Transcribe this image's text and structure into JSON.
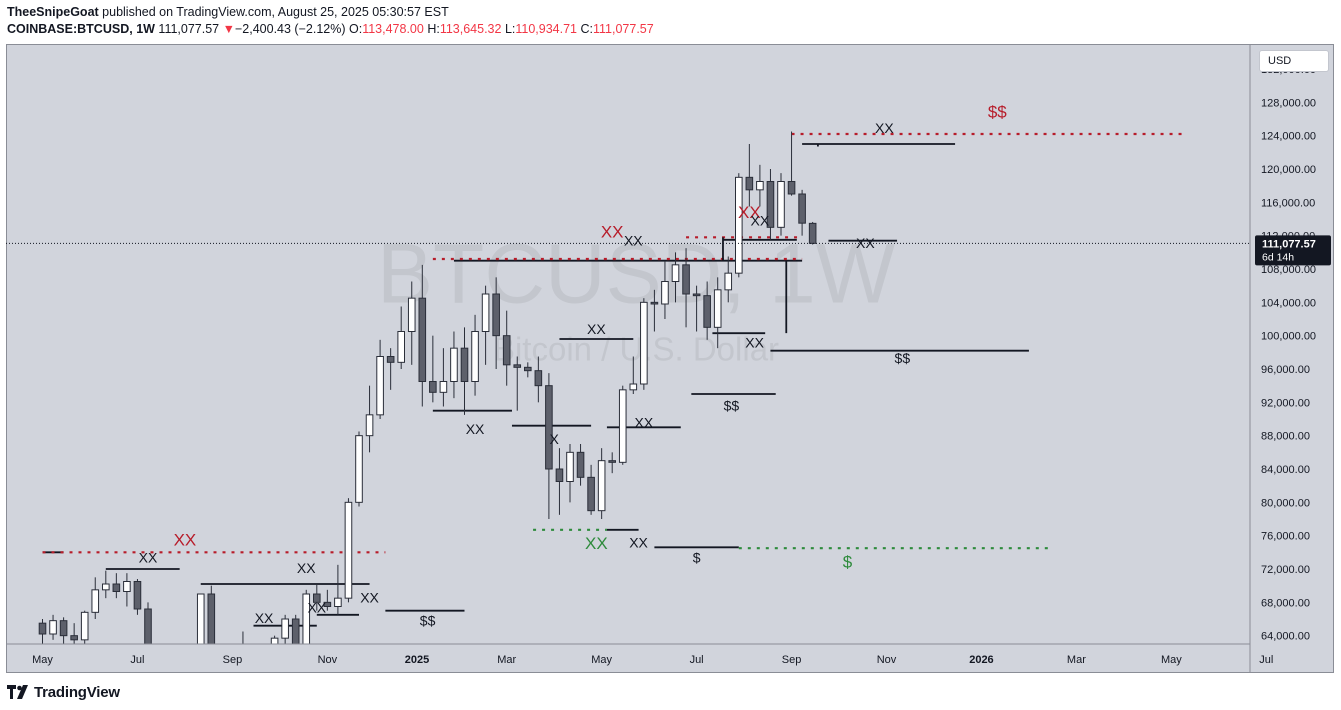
{
  "header": {
    "author": "TheeSnipeGoat",
    "published_text": "published on TradingView.com, August 25, 2025 05:30:57 EST",
    "symbol": "COINBASE:BTCUSD,",
    "interval": "1W",
    "last": "111,077.57",
    "change_arrow": "▼",
    "change": "−2,400.43 (−2.12%)",
    "o_label": "O:",
    "o_value": "113,478.00",
    "h_label": "H:",
    "h_value": "113,645.32",
    "l_label": "L:",
    "l_value": "110,934.71",
    "c_label": "C:",
    "c_value": "111,077.57"
  },
  "currency_button": "USD",
  "price_badge": {
    "price": "111,077.57",
    "countdown": "6d 14h"
  },
  "watermark": {
    "symbol": "BTCUSD, 1W",
    "name": "Bitcoin / U.S. Dollar"
  },
  "footer": {
    "brand": "TradingView",
    "logo": "tradingview-logo-icon"
  },
  "colors": {
    "annotation_red": "#b71c2a",
    "annotation_green": "#2e8b3c",
    "line": "#131722",
    "panel": "#d1d4dc"
  },
  "chart_data": {
    "type": "candlestick",
    "ylim": [
      63000,
      135000
    ],
    "yticks": [
      64000,
      68000,
      72000,
      76000,
      80000,
      84000,
      88000,
      92000,
      96000,
      100000,
      104000,
      108000,
      112000,
      116000,
      120000,
      124000,
      128000,
      132000
    ],
    "ytick_labels": [
      "64,000.00",
      "68,000.00",
      "72,000.00",
      "76,000.00",
      "80,000.00",
      "84,000.00",
      "88,000.00",
      "92,000.00",
      "96,000.00",
      "100,000.00",
      "104,000.00",
      "108,000.00",
      "112,000.00",
      "116,000.00",
      "120,000.00",
      "124,000.00",
      "128,000.00",
      "132,000.00"
    ],
    "xtick_labels": [
      "May",
      "Jul",
      "Sep",
      "Nov",
      "2025",
      "Mar",
      "May",
      "Jul",
      "Sep",
      "Nov",
      "2026",
      "Mar",
      "May",
      "Jul"
    ],
    "xtick_weeks": [
      0,
      9,
      18,
      27,
      35.5,
      44,
      53,
      62,
      71,
      80,
      89,
      98,
      107,
      116
    ],
    "current_price": 111077.57,
    "candles": [
      [
        65500,
        66000,
        63000,
        64200
      ],
      [
        64200,
        66500,
        63500,
        65800
      ],
      [
        65800,
        66200,
        63000,
        64000
      ],
      [
        64000,
        65500,
        62500,
        63500
      ],
      [
        63500,
        67000,
        63000,
        66800
      ],
      [
        66800,
        71000,
        66000,
        69500
      ],
      [
        69500,
        71800,
        68500,
        70200
      ],
      [
        70200,
        71500,
        68500,
        69300
      ],
      [
        69300,
        71500,
        67500,
        70500
      ],
      [
        70500,
        70800,
        66500,
        67200
      ],
      [
        67200,
        68000,
        60000,
        61500
      ],
      [
        61500,
        63000,
        58000,
        59000
      ],
      [
        59000,
        60000,
        55000,
        57000
      ],
      [
        57000,
        60000,
        54000,
        57500
      ],
      [
        57500,
        63000,
        56000,
        62500
      ],
      [
        62500,
        69000,
        62000,
        69000
      ],
      [
        69000,
        70000,
        60000,
        61000
      ],
      [
        61000,
        62000,
        56000,
        58500
      ],
      [
        58500,
        63000,
        56500,
        62800
      ],
      [
        62800,
        64500,
        58500,
        60000
      ],
      [
        60000,
        61500,
        57500,
        58000
      ],
      [
        58000,
        60500,
        54000,
        59800
      ],
      [
        59800,
        64000,
        59200,
        63700
      ],
      [
        63700,
        66500,
        62000,
        66000
      ],
      [
        66000,
        66500,
        62000,
        63000
      ],
      [
        63000,
        69500,
        62500,
        69000
      ],
      [
        69000,
        70200,
        67000,
        68000
      ],
      [
        68000,
        69500,
        67000,
        67500
      ],
      [
        67500,
        72500,
        66500,
        68500
      ],
      [
        68500,
        80500,
        68000,
        80000
      ],
      [
        80000,
        88500,
        79500,
        88000
      ],
      [
        88000,
        94000,
        86000,
        90500
      ],
      [
        90500,
        99500,
        90000,
        97500
      ],
      [
        97500,
        98500,
        93500,
        96800
      ],
      [
        96800,
        103500,
        96000,
        100500
      ],
      [
        100500,
        106500,
        96500,
        104500
      ],
      [
        104500,
        108500,
        91500,
        94500
      ],
      [
        94500,
        100000,
        92000,
        93200
      ],
      [
        93200,
        98500,
        91500,
        94500
      ],
      [
        94500,
        100500,
        92500,
        98500
      ],
      [
        98500,
        101000,
        90500,
        94500
      ],
      [
        94500,
        102500,
        92800,
        100500
      ],
      [
        100500,
        106000,
        96500,
        105000
      ],
      [
        105000,
        107000,
        96000,
        100000
      ],
      [
        100000,
        103000,
        94000,
        96500
      ],
      [
        96500,
        97500,
        91000,
        96200
      ],
      [
        96200,
        96800,
        95000,
        95800
      ],
      [
        95800,
        97500,
        92000,
        94000
      ],
      [
        94000,
        95500,
        78000,
        84000
      ],
      [
        84000,
        86500,
        78500,
        82500
      ],
      [
        82500,
        87000,
        80000,
        86000
      ],
      [
        86000,
        87000,
        82000,
        83000
      ],
      [
        83000,
        84500,
        78500,
        79000
      ],
      [
        79000,
        86500,
        78000,
        85000
      ],
      [
        85000,
        86000,
        83500,
        84800
      ],
      [
        84800,
        94000,
        84500,
        93500
      ],
      [
        93500,
        97500,
        93000,
        94200
      ],
      [
        94200,
        104500,
        93500,
        104000
      ],
      [
        104000,
        105500,
        100500,
        103800
      ],
      [
        103800,
        109000,
        102000,
        106500
      ],
      [
        106500,
        110000,
        104000,
        108500
      ],
      [
        108500,
        110500,
        101000,
        105000
      ],
      [
        105000,
        106000,
        100500,
        104800
      ],
      [
        104800,
        106500,
        99500,
        101000
      ],
      [
        101000,
        107000,
        98500,
        105500
      ],
      [
        105500,
        109500,
        104000,
        107500
      ],
      [
        107500,
        119500,
        107000,
        119000
      ],
      [
        119000,
        123000,
        115500,
        117500
      ],
      [
        117500,
        120500,
        115500,
        118500
      ],
      [
        118500,
        120000,
        111500,
        113000
      ],
      [
        113000,
        119500,
        112000,
        118500
      ],
      [
        118500,
        124500,
        116800,
        117000
      ],
      [
        117000,
        117500,
        112000,
        113500
      ],
      [
        113478,
        113645.32,
        110934.71,
        111077.57
      ]
    ],
    "annotations": [
      {
        "text": "XX",
        "week": 13.5,
        "price": 74800,
        "color": "red",
        "size": 17
      },
      {
        "text": "XX",
        "week": 10,
        "price": 72800,
        "color": "black",
        "size": 14
      },
      {
        "text": "XX",
        "week": 25,
        "price": 71500,
        "color": "black",
        "size": 14
      },
      {
        "text": "XX",
        "week": 31,
        "price": 68000,
        "color": "black",
        "size": 14
      },
      {
        "text": "XX",
        "week": 26,
        "price": 66800,
        "color": "black",
        "size": 14
      },
      {
        "text": "XX",
        "week": 21,
        "price": 65500,
        "color": "black",
        "size": 14
      },
      {
        "text": "$$",
        "week": 36.5,
        "price": 65200,
        "color": "black",
        "size": 14
      },
      {
        "text": "XX",
        "week": 41,
        "price": 88200,
        "color": "black",
        "size": 14
      },
      {
        "text": "X",
        "week": 48.5,
        "price": 87000,
        "color": "black",
        "size": 14
      },
      {
        "text": "XX",
        "week": 52.5,
        "price": 100200,
        "color": "black",
        "size": 14
      },
      {
        "text": "XX",
        "week": 57,
        "price": 89000,
        "color": "black",
        "size": 14
      },
      {
        "text": "XX",
        "week": 52.5,
        "price": 74400,
        "color": "green",
        "size": 17
      },
      {
        "text": "XX",
        "week": 56.5,
        "price": 74600,
        "color": "black",
        "size": 14
      },
      {
        "text": "$",
        "week": 62,
        "price": 72800,
        "color": "black",
        "size": 14
      },
      {
        "text": "$",
        "week": 76.3,
        "price": 72200,
        "color": "green",
        "size": 17
      },
      {
        "text": "$$",
        "week": 65.3,
        "price": 91000,
        "color": "black",
        "size": 14
      },
      {
        "text": "XX",
        "week": 67.5,
        "price": 98600,
        "color": "black",
        "size": 14
      },
      {
        "text": "$$",
        "week": 81.5,
        "price": 96700,
        "color": "black",
        "size": 14
      },
      {
        "text": "XX",
        "week": 54,
        "price": 111800,
        "color": "red",
        "size": 17
      },
      {
        "text": "XX",
        "week": 56,
        "price": 110800,
        "color": "black",
        "size": 14
      },
      {
        "text": "XX",
        "week": 67,
        "price": 114100,
        "color": "red",
        "size": 17
      },
      {
        "text": "XX",
        "week": 68,
        "price": 113200,
        "color": "black",
        "size": 14
      },
      {
        "text": "XX",
        "week": 78,
        "price": 110500,
        "color": "black",
        "size": 14
      },
      {
        "text": "XX",
        "week": 79.8,
        "price": 124300,
        "color": "black",
        "size": 14
      },
      {
        "text": "$$",
        "week": 90.5,
        "price": 126200,
        "color": "red",
        "size": 17
      }
    ],
    "lines": [
      {
        "w1": 0,
        "w2": 2,
        "price": 74000,
        "style": "solid"
      },
      {
        "w1": 6,
        "w2": 13,
        "price": 72000,
        "style": "solid"
      },
      {
        "w1": 15,
        "w2": 31,
        "price": 70200,
        "style": "solid"
      },
      {
        "w1": 20,
        "w2": 26,
        "price": 65200,
        "style": "solid"
      },
      {
        "w1": 26,
        "w2": 30,
        "price": 66500,
        "style": "solid"
      },
      {
        "w1": 32.5,
        "w2": 40,
        "price": 67000,
        "style": "solid"
      },
      {
        "w1": 37,
        "w2": 44.5,
        "price": 91000,
        "style": "solid"
      },
      {
        "w1": 44.5,
        "w2": 52,
        "price": 89200,
        "style": "solid"
      },
      {
        "w1": 49,
        "w2": 56,
        "price": 99600,
        "style": "solid"
      },
      {
        "w1": 53.5,
        "w2": 60.5,
        "price": 89000,
        "style": "solid"
      },
      {
        "w1": 53.5,
        "w2": 56.5,
        "price": 76700,
        "style": "solid"
      },
      {
        "w1": 58,
        "w2": 66,
        "price": 74600,
        "style": "solid"
      },
      {
        "w1": 61.5,
        "w2": 69.5,
        "price": 93000,
        "style": "solid"
      },
      {
        "w1": 63.5,
        "w2": 68.5,
        "price": 100300,
        "style": "solid"
      },
      {
        "w1": 69,
        "w2": 93.5,
        "price": 98200,
        "style": "solid"
      },
      {
        "w1": 39,
        "w2": 72,
        "price": 109000,
        "style": "solid"
      },
      {
        "w1": 64.5,
        "w2": 71.5,
        "price": 111500,
        "style": "solid"
      },
      {
        "w1": 74.5,
        "w2": 81,
        "price": 111400,
        "style": "solid"
      },
      {
        "w1": 72,
        "w2": 86.5,
        "price": 123000,
        "style": "solid"
      },
      {
        "w1": 0,
        "w2": 32.5,
        "price": 74000,
        "style": "dotted",
        "color": "red"
      },
      {
        "w1": 37,
        "w2": 72,
        "price": 109200,
        "style": "dotted",
        "color": "red"
      },
      {
        "w1": 61,
        "w2": 72,
        "price": 111800,
        "style": "dotted",
        "color": "red"
      },
      {
        "w1": 71,
        "w2": 108,
        "price": 124200,
        "style": "dotted",
        "color": "red"
      },
      {
        "w1": 46.5,
        "w2": 53.5,
        "price": 76700,
        "style": "dotted",
        "color": "green"
      },
      {
        "w1": 66,
        "w2": 95.5,
        "price": 74500,
        "style": "dotted",
        "color": "green"
      }
    ],
    "verticals": [
      {
        "week": 64.5,
        "p1": 109000,
        "p2": 111800
      },
      {
        "week": 73.5,
        "p1": 122700,
        "p2": 123000
      },
      {
        "week": 70.5,
        "p1": 100300,
        "p2": 109000
      }
    ]
  }
}
